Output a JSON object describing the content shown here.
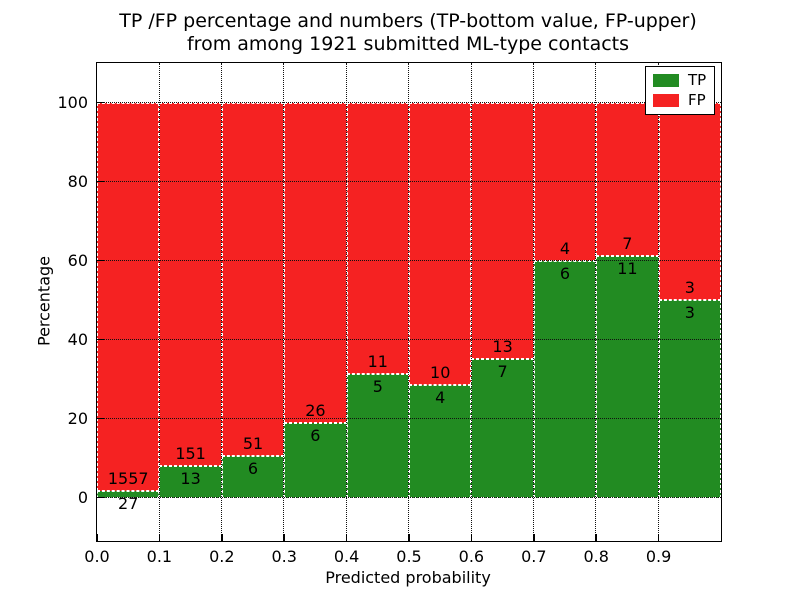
{
  "chart_data": {
    "type": "bar",
    "stacked": true,
    "unit": "percent",
    "title_line1": "TP /FP percentage and numbers (TP-bottom value, FP-upper)",
    "title_line2": "from among 1921 submitted ML-type contacts",
    "xlabel": "Predicted probability",
    "ylabel": "Percentage",
    "xlim": [
      0.0,
      1.0
    ],
    "ylim": [
      -11,
      110
    ],
    "x_tick_labels": [
      "0.0",
      "0.1",
      "0.2",
      "0.3",
      "0.4",
      "0.5",
      "0.6",
      "0.7",
      "0.8",
      "0.9"
    ],
    "y_tick_values": [
      0,
      20,
      40,
      60,
      80,
      100
    ],
    "grid": true,
    "grid_style": "dotted",
    "legend_position": "upper right",
    "total_contacts": 1921,
    "annotation_note": "FP count printed above segment boundary, TP count below",
    "bins": [
      {
        "range": [
          0.0,
          0.1
        ],
        "tp": 27,
        "fp": 1557
      },
      {
        "range": [
          0.1,
          0.2
        ],
        "tp": 13,
        "fp": 151
      },
      {
        "range": [
          0.2,
          0.3
        ],
        "tp": 6,
        "fp": 51
      },
      {
        "range": [
          0.3,
          0.4
        ],
        "tp": 6,
        "fp": 26
      },
      {
        "range": [
          0.4,
          0.5
        ],
        "tp": 5,
        "fp": 11
      },
      {
        "range": [
          0.5,
          0.6
        ],
        "tp": 4,
        "fp": 10
      },
      {
        "range": [
          0.6,
          0.7
        ],
        "tp": 7,
        "fp": 13
      },
      {
        "range": [
          0.7,
          0.8
        ],
        "tp": 6,
        "fp": 4
      },
      {
        "range": [
          0.8,
          0.9
        ],
        "tp": 11,
        "fp": 7
      },
      {
        "range": [
          0.9,
          1.0
        ],
        "tp": 3,
        "fp": 3
      }
    ],
    "series": [
      {
        "name": "TP",
        "color": "#228b22",
        "counts": [
          27,
          13,
          6,
          6,
          5,
          4,
          7,
          6,
          11,
          3
        ]
      },
      {
        "name": "FP",
        "color": "#f52222",
        "counts": [
          1557,
          151,
          51,
          26,
          11,
          10,
          13,
          4,
          7,
          3
        ]
      }
    ]
  }
}
